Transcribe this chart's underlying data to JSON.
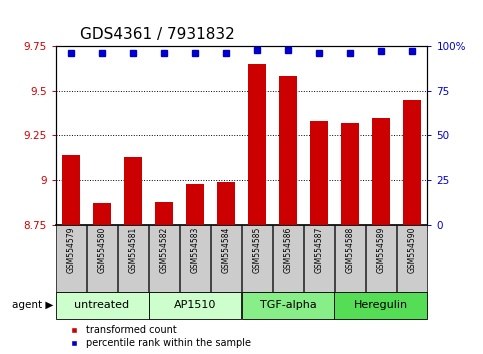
{
  "title": "GDS4361 / 7931832",
  "samples": [
    "GSM554579",
    "GSM554580",
    "GSM554581",
    "GSM554582",
    "GSM554583",
    "GSM554584",
    "GSM554585",
    "GSM554586",
    "GSM554587",
    "GSM554588",
    "GSM554589",
    "GSM554590"
  ],
  "bar_values": [
    9.14,
    8.87,
    9.13,
    8.88,
    8.98,
    8.99,
    9.65,
    9.58,
    9.33,
    9.32,
    9.35,
    9.45
  ],
  "percentile_values": [
    96,
    96,
    96,
    96,
    96,
    96,
    98,
    98,
    96,
    96,
    97,
    97
  ],
  "bar_color": "#cc0000",
  "dot_color": "#0000cc",
  "ylim_left": [
    8.75,
    9.75
  ],
  "ylim_right": [
    0,
    100
  ],
  "yticks_left": [
    8.75,
    9.0,
    9.25,
    9.5,
    9.75
  ],
  "yticks_right": [
    0,
    25,
    50,
    75,
    100
  ],
  "ytick_labels_left": [
    "8.75",
    "9",
    "9.25",
    "9.5",
    "9.75"
  ],
  "ytick_labels_right": [
    "0",
    "25",
    "50",
    "75",
    "100%"
  ],
  "groups": [
    {
      "label": "untreated",
      "start": 0,
      "end": 3,
      "color": "#ccffcc"
    },
    {
      "label": "AP1510",
      "start": 3,
      "end": 6,
      "color": "#ccffcc"
    },
    {
      "label": "TGF-alpha",
      "start": 6,
      "end": 9,
      "color": "#88ee88"
    },
    {
      "label": "Heregulin",
      "start": 9,
      "end": 12,
      "color": "#55dd55"
    }
  ],
  "legend_bar_label": "transformed count",
  "legend_dot_label": "percentile rank within the sample",
  "tick_label_bg": "#cccccc",
  "title_fontsize": 11,
  "tick_fontsize": 7.5,
  "sample_fontsize": 5.5,
  "group_fontsize": 8,
  "legend_fontsize": 7
}
